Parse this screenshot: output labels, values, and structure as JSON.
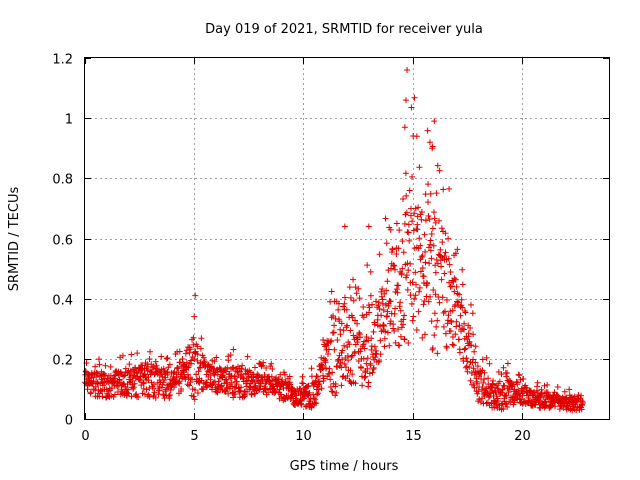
{
  "chart_data": {
    "type": "scatter",
    "title": "Day 019 of 2021, SRMTID for receiver yula",
    "xlabel": "GPS time / hours",
    "ylabel": "SRMTID / TECUs",
    "xlim": [
      0,
      24
    ],
    "ylim": [
      0,
      1.2
    ],
    "x_ticks": [
      0,
      5,
      10,
      15,
      20
    ],
    "x_tick_labels": [
      "0",
      "5",
      "10",
      "15",
      "20"
    ],
    "y_ticks": [
      0,
      0.2,
      0.4,
      0.6,
      0.8,
      1.0,
      1.2
    ],
    "y_tick_labels": [
      "0",
      "0.2",
      "0.4",
      "0.6",
      "0.8",
      "1",
      "1.2"
    ],
    "grid": true,
    "marker": "+",
    "color": "#e00000",
    "series": [
      {
        "name": "SRMTID",
        "profile_hours": [
          0,
          1,
          2,
          3,
          4,
          4.5,
          5,
          5.5,
          6,
          7,
          8,
          9,
          9.5,
          10,
          10.5,
          11,
          11.5,
          12,
          12.5,
          13,
          13.5,
          14,
          14.5,
          15,
          15.5,
          16,
          16.5,
          17,
          17.5,
          18,
          18.5,
          19,
          19.5,
          20,
          20.5,
          21,
          21.5,
          22,
          22.5,
          22.8
        ],
        "profile_median": [
          0.12,
          0.11,
          0.12,
          0.13,
          0.11,
          0.15,
          0.17,
          0.15,
          0.13,
          0.12,
          0.12,
          0.1,
          0.08,
          0.07,
          0.08,
          0.18,
          0.24,
          0.26,
          0.22,
          0.25,
          0.3,
          0.38,
          0.45,
          0.5,
          0.48,
          0.45,
          0.42,
          0.35,
          0.25,
          0.12,
          0.08,
          0.07,
          0.09,
          0.08,
          0.07,
          0.06,
          0.06,
          0.05,
          0.05,
          0.05
        ],
        "profile_max": [
          0.21,
          0.2,
          0.22,
          0.27,
          0.2,
          0.28,
          0.41,
          0.25,
          0.22,
          0.24,
          0.19,
          0.18,
          0.15,
          0.14,
          0.18,
          0.3,
          0.64,
          0.58,
          0.45,
          0.64,
          0.55,
          0.78,
          0.9,
          1.16,
          0.94,
          0.99,
          0.88,
          0.6,
          0.45,
          0.27,
          0.2,
          0.17,
          0.19,
          0.15,
          0.13,
          0.12,
          0.11,
          0.1,
          0.1,
          0.09
        ],
        "spikes": [
          {
            "x": 5.05,
            "y": 0.41
          },
          {
            "x": 11.9,
            "y": 0.64
          },
          {
            "x": 13.0,
            "y": 0.64
          },
          {
            "x": 14.75,
            "y": 1.16
          },
          {
            "x": 14.7,
            "y": 1.06
          },
          {
            "x": 14.65,
            "y": 0.97
          },
          {
            "x": 15.2,
            "y": 0.94
          },
          {
            "x": 16.0,
            "y": 0.99
          },
          {
            "x": 15.8,
            "y": 0.92
          },
          {
            "x": 15.9,
            "y": 0.9
          }
        ],
        "n_points": 1700
      }
    ]
  }
}
